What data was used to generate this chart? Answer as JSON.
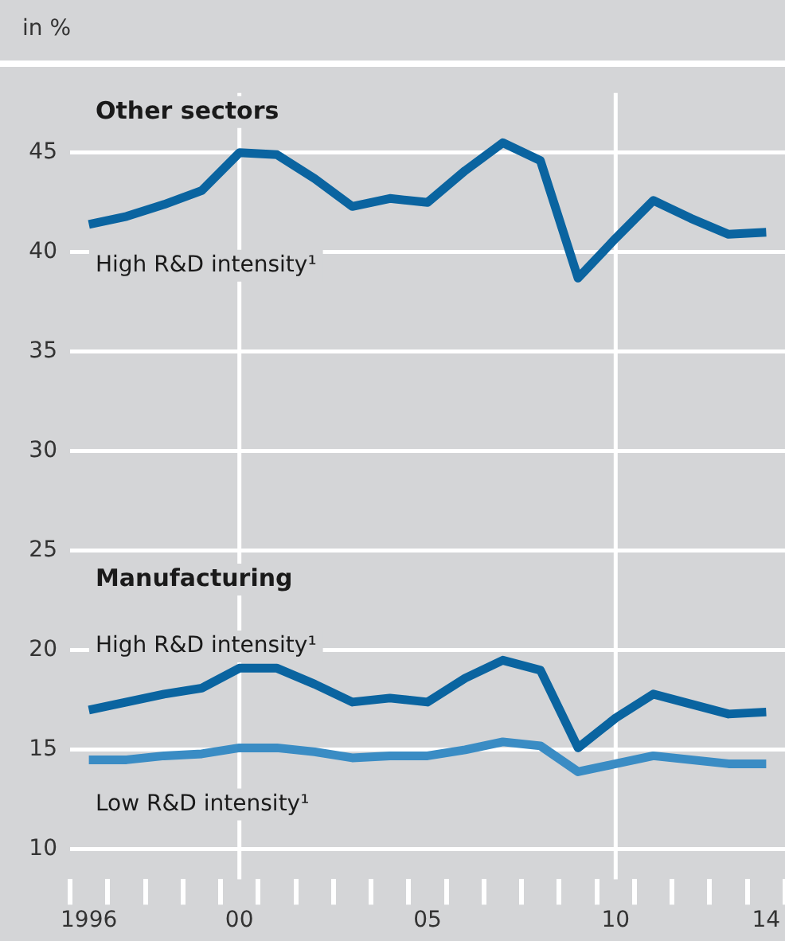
{
  "chart_data": {
    "type": "line",
    "ylabel": "in %",
    "categories": [
      "1996",
      null,
      null,
      null,
      "00",
      null,
      null,
      null,
      null,
      "05",
      null,
      null,
      null,
      null,
      "10",
      null,
      null,
      null,
      "14"
    ],
    "series": [
      {
        "name": "High R&D intensity¹",
        "color": "#0a64a0",
        "values": [
          41.4,
          41.8,
          42.4,
          43.1,
          45.0,
          44.9,
          43.7,
          42.3,
          42.7,
          42.5,
          44.1,
          45.5,
          44.6,
          38.7,
          40.7,
          42.6,
          41.7,
          40.9,
          41.0
        ]
      },
      {
        "name": "High R&D intensity¹",
        "color": "#0a64a0",
        "values": [
          17.0,
          17.4,
          17.8,
          18.1,
          19.1,
          19.1,
          18.3,
          17.4,
          17.6,
          17.4,
          18.6,
          19.5,
          19.0,
          15.1,
          16.6,
          17.8,
          17.3,
          16.8,
          16.9
        ]
      },
      {
        "name": "Low R&D intensity¹",
        "color": "#3a8cc4",
        "values": [
          14.5,
          14.5,
          14.7,
          14.8,
          15.1,
          15.1,
          14.9,
          14.6,
          14.7,
          14.7,
          15.0,
          15.4,
          15.2,
          13.9,
          14.3,
          14.7,
          14.5,
          14.3,
          14.3
        ]
      }
    ],
    "annotations": [
      "Other sectors",
      "Manufacturing"
    ],
    "ylim": [
      8.5,
      48
    ],
    "yticks": [
      10,
      15,
      20,
      25,
      30,
      35,
      40,
      45
    ],
    "ref_lines": [
      {
        "axis": "x",
        "value": "00",
        "color": "#ffffff"
      },
      {
        "axis": "x",
        "value": "10",
        "color": "#ffffff"
      }
    ],
    "grid": "y",
    "legend": false,
    "marker": "none",
    "line_style": "solid"
  }
}
